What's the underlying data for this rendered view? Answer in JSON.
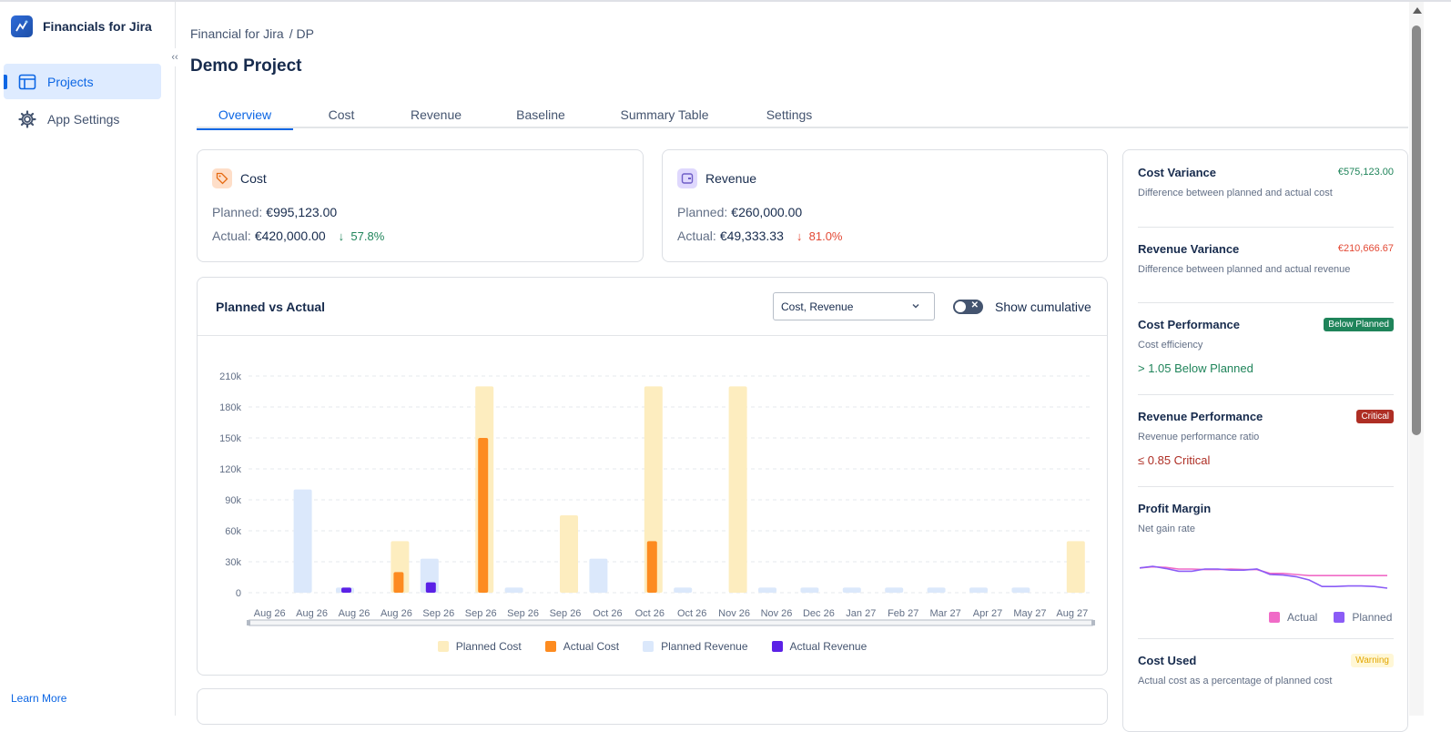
{
  "app": {
    "name": "Financials for Jira"
  },
  "sidebar": {
    "items": [
      {
        "label": "Projects",
        "icon": "table-icon",
        "active": true
      },
      {
        "label": "App Settings",
        "icon": "gear-icon",
        "active": false
      }
    ],
    "footer_link": "Learn More"
  },
  "breadcrumb": {
    "root": "Financial for Jira",
    "separator": "/",
    "current": "DP"
  },
  "page": {
    "title": "Demo Project"
  },
  "tabs": [
    "Overview",
    "Cost",
    "Revenue",
    "Baseline",
    "Summary Table",
    "Settings"
  ],
  "active_tab": "Overview",
  "cost_card": {
    "title": "Cost",
    "planned_label": "Planned:",
    "planned_value": "€995,123.00",
    "actual_label": "Actual:",
    "actual_value": "€420,000.00",
    "delta": "57.8%",
    "delta_direction": "down",
    "delta_color": "#1f845a"
  },
  "revenue_card": {
    "title": "Revenue",
    "planned_label": "Planned:",
    "planned_value": "€260,000.00",
    "actual_label": "Actual:",
    "actual_value": "€49,333.33",
    "delta": "81.0%",
    "delta_direction": "down",
    "delta_color": "#e34935"
  },
  "chart_panel": {
    "title": "Planned vs Actual",
    "select_value": "Cost, Revenue",
    "toggle_label": "Show cumulative",
    "toggle_on": false
  },
  "chart_data": {
    "type": "bar",
    "categories": [
      "Aug 26",
      "Aug 26",
      "Aug 26",
      "Aug 26",
      "Sep 26",
      "Sep 26",
      "Sep 26",
      "Sep 26",
      "Oct 26",
      "Oct 26",
      "Oct 26",
      "Nov 26",
      "Nov 26",
      "Dec 26",
      "Jan 27",
      "Feb 27",
      "Mar 27",
      "Apr 27",
      "May 27",
      "Aug 27"
    ],
    "yticks": [
      0,
      30000,
      60000,
      90000,
      120000,
      150000,
      180000,
      210000
    ],
    "ytick_labels": [
      "0",
      "30k",
      "60k",
      "90k",
      "120k",
      "150k",
      "180k",
      "210k"
    ],
    "ylim": [
      0,
      210000
    ],
    "grid": true,
    "legend_position": "bottom",
    "series": [
      {
        "name": "Planned Cost",
        "color": "#fdedbf",
        "values": [
          0,
          0,
          0,
          50000,
          0,
          200000,
          0,
          75000,
          0,
          200000,
          0,
          200000,
          0,
          0,
          0,
          0,
          0,
          0,
          0,
          50000
        ]
      },
      {
        "name": "Actual Cost",
        "color": "#fd8b20",
        "values": [
          0,
          0,
          0,
          20000,
          0,
          150000,
          0,
          0,
          0,
          50000,
          0,
          0,
          0,
          0,
          0,
          0,
          0,
          0,
          0,
          0
        ]
      },
      {
        "name": "Planned Revenue",
        "color": "#dbe8fb",
        "values": [
          0,
          100000,
          5000,
          0,
          33000,
          0,
          5000,
          0,
          33000,
          0,
          5000,
          0,
          5000,
          5000,
          5000,
          5000,
          5000,
          5000,
          5000,
          0
        ]
      },
      {
        "name": "Actual Revenue",
        "color": "#5b21e6",
        "values": [
          0,
          0,
          5000,
          0,
          10000,
          0,
          0,
          0,
          0,
          0,
          0,
          0,
          0,
          0,
          0,
          0,
          0,
          0,
          0,
          0
        ]
      }
    ]
  },
  "metrics": {
    "cost_variance": {
      "name": "Cost Variance",
      "value": "€575,123.00",
      "value_color": "#1f845a",
      "desc": "Difference between planned and actual cost"
    },
    "revenue_variance": {
      "name": "Revenue Variance",
      "value": "€210,666.67",
      "value_color": "#e34935",
      "desc": "Difference between planned and actual revenue"
    },
    "cost_performance": {
      "name": "Cost Performance",
      "badge": "Below Planned",
      "desc": "Cost efficiency",
      "status": "> 1.05 Below Planned",
      "status_color": "#1f845a"
    },
    "revenue_performance": {
      "name": "Revenue Performance",
      "badge": "Critical",
      "desc": "Revenue performance ratio",
      "status": "≤ 0.85 Critical",
      "status_color": "#ae2e24"
    },
    "profit_margin": {
      "name": "Profit Margin",
      "desc": "Net gain rate",
      "legend": [
        {
          "name": "Actual",
          "color": "#f06bc7"
        },
        {
          "name": "Planned",
          "color": "#8b5cf6"
        }
      ],
      "actual_values": [
        0.72,
        0.74,
        0.73,
        0.7,
        0.7,
        0.69,
        0.69,
        0.7,
        0.69,
        0.69,
        0.62,
        0.62,
        0.6,
        0.58,
        0.58,
        0.58,
        0.58,
        0.58,
        0.58,
        0.58
      ],
      "planned_values": [
        0.72,
        0.75,
        0.71,
        0.66,
        0.66,
        0.7,
        0.7,
        0.68,
        0.68,
        0.7,
        0.6,
        0.59,
        0.56,
        0.5,
        0.38,
        0.38,
        0.39,
        0.39,
        0.38,
        0.35
      ]
    },
    "cost_used": {
      "name": "Cost Used",
      "badge": "Warning",
      "desc": "Actual cost as a percentage of planned cost"
    }
  }
}
